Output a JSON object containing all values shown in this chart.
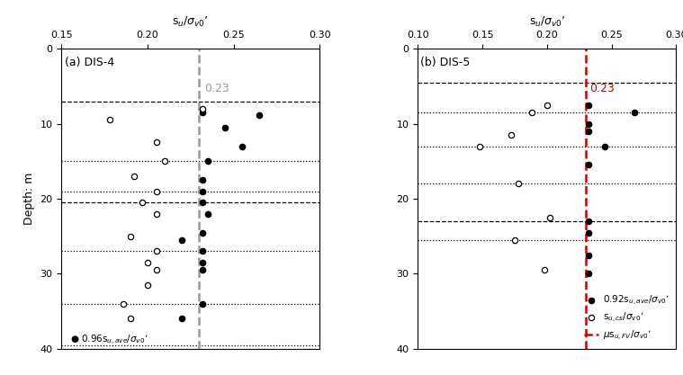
{
  "panel_a": {
    "title": "(a) DIS-4",
    "xlim": [
      0.15,
      0.3
    ],
    "xticks": [
      0.15,
      0.2,
      0.25,
      0.3
    ],
    "ylim": [
      40,
      0
    ],
    "yticks": [
      0,
      10,
      20,
      30,
      40
    ],
    "vline_x": 0.23,
    "vline_label": "0.23",
    "vline_color": "#999999",
    "dashed_hlines": [
      7.0,
      20.5
    ],
    "dotted_hlines": [
      15.0,
      19.0,
      27.0,
      34.0,
      39.5
    ],
    "filled_dots": [
      [
        0.232,
        8.5
      ],
      [
        0.265,
        8.8
      ],
      [
        0.245,
        10.5
      ],
      [
        0.255,
        13.0
      ],
      [
        0.235,
        15.0
      ],
      [
        0.232,
        17.5
      ],
      [
        0.232,
        19.0
      ],
      [
        0.232,
        20.5
      ],
      [
        0.235,
        22.0
      ],
      [
        0.232,
        24.5
      ],
      [
        0.22,
        25.5
      ],
      [
        0.232,
        27.0
      ],
      [
        0.232,
        28.5
      ],
      [
        0.232,
        29.5
      ],
      [
        0.232,
        34.0
      ],
      [
        0.22,
        36.0
      ]
    ],
    "open_dots": [
      [
        0.232,
        8.0
      ],
      [
        0.178,
        9.5
      ],
      [
        0.205,
        12.5
      ],
      [
        0.21,
        15.0
      ],
      [
        0.192,
        17.0
      ],
      [
        0.205,
        19.0
      ],
      [
        0.197,
        20.5
      ],
      [
        0.205,
        22.0
      ],
      [
        0.19,
        25.0
      ],
      [
        0.205,
        27.0
      ],
      [
        0.2,
        28.5
      ],
      [
        0.205,
        29.5
      ],
      [
        0.2,
        31.5
      ],
      [
        0.186,
        34.0
      ],
      [
        0.19,
        36.0
      ]
    ]
  },
  "panel_b": {
    "title": "(b) DIS-5",
    "xlim": [
      0.1,
      0.3
    ],
    "xticks": [
      0.1,
      0.15,
      0.2,
      0.25,
      0.3
    ],
    "ylim": [
      40,
      0
    ],
    "yticks": [
      0,
      10,
      20,
      30,
      40
    ],
    "vline_x": 0.23,
    "vline_label": "0.23",
    "vline_color": "#CC0000",
    "dashed_hlines": [
      4.5,
      23.0
    ],
    "dotted_hlines": [
      8.5,
      13.0,
      18.0,
      25.5
    ],
    "filled_dots": [
      [
        0.232,
        7.5
      ],
      [
        0.268,
        8.5
      ],
      [
        0.232,
        10.0
      ],
      [
        0.232,
        11.0
      ],
      [
        0.245,
        13.0
      ],
      [
        0.232,
        15.5
      ],
      [
        0.232,
        23.0
      ],
      [
        0.232,
        24.5
      ],
      [
        0.232,
        27.5
      ],
      [
        0.232,
        30.0
      ]
    ],
    "open_dots": [
      [
        0.2,
        7.5
      ],
      [
        0.188,
        8.5
      ],
      [
        0.172,
        11.5
      ],
      [
        0.148,
        13.0
      ],
      [
        0.178,
        18.0
      ],
      [
        0.202,
        22.5
      ],
      [
        0.175,
        25.5
      ],
      [
        0.198,
        29.5
      ]
    ]
  },
  "legend": {
    "filled_label": "0.92s$_{u,ave}$/$\\sigma_{v0}$’",
    "open_label": "s$_{u,cs}$/$\\sigma_{v0}$’",
    "vline_label": "$\\mu$s$_{u,FV}$/$\\sigma_{v0}$’"
  },
  "panel_a_bottom_label": "0.96s$_{u,ave}$/$\\sigma_{v0}$’",
  "xlabel_top": "s$_u$/$\\sigma_{v0}$’",
  "ylabel": "Depth: m",
  "tick_fontsize": 8,
  "label_fontsize": 9,
  "title_fontsize": 9
}
